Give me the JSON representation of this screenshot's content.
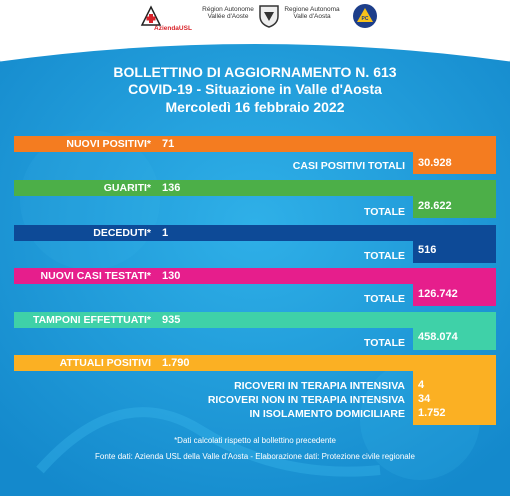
{
  "header": {
    "logos": {
      "usl_text": "AziendaUSL",
      "regione1_text": "Région Autonome Vallée d'Aoste",
      "regione2_text": "Regione Autonoma Valle d'Aosta"
    },
    "title_line1": "BOLLETTINO DI AGGIORNAMENTO N. 613",
    "title_line2": "COVID-19 - Situazione in Valle d'Aosta",
    "title_line3": "Mercoledì 16 febbraio 2022"
  },
  "rows": {
    "nuovi_positivi": {
      "label": "NUOVI POSITIVI*",
      "value": "71",
      "total_label": "CASI POSITIVI TOTALI",
      "total_value": "30.928",
      "color": "#f47c20"
    },
    "guariti": {
      "label": "GUARITI*",
      "value": "136",
      "total_label": "TOTALE",
      "total_value": "28.622",
      "color": "#4caf48"
    },
    "deceduti": {
      "label": "DECEDUTI*",
      "value": "1",
      "total_label": "TOTALE",
      "total_value": "516",
      "color": "#0d4a97"
    },
    "nuovi_casi_testati": {
      "label": "NUOVI CASI TESTATI*",
      "value": "130",
      "total_label": "TOTALE",
      "total_value": "126.742",
      "color": "#e61e8c"
    },
    "tamponi_effettuati": {
      "label": "TAMPONI EFFETTUATI*",
      "value": "935",
      "total_label": "TOTALE",
      "total_value": "458.074",
      "color": "#3fd1a8"
    },
    "attuali_positivi": {
      "label": "ATTUALI POSITIVI",
      "value": "1.790",
      "color": "#fbb023",
      "details": [
        {
          "label": "RICOVERI IN TERAPIA INTENSIVA",
          "value": "4"
        },
        {
          "label": "RICOVERI NON IN TERAPIA INTENSIVA",
          "value": "34"
        },
        {
          "label": "IN ISOLAMENTO DOMICILIARE",
          "value": "1.752"
        }
      ]
    }
  },
  "footer": {
    "note": "*Dati calcolati rispetto al bollettino precedente",
    "source": "Fonte dati: Azienda USL della Valle d'Aosta - Elaborazione dati: Protezione civile regionale"
  },
  "colors": {
    "background_blue": "#1a9ad6",
    "background_dark": "#1577b8"
  }
}
